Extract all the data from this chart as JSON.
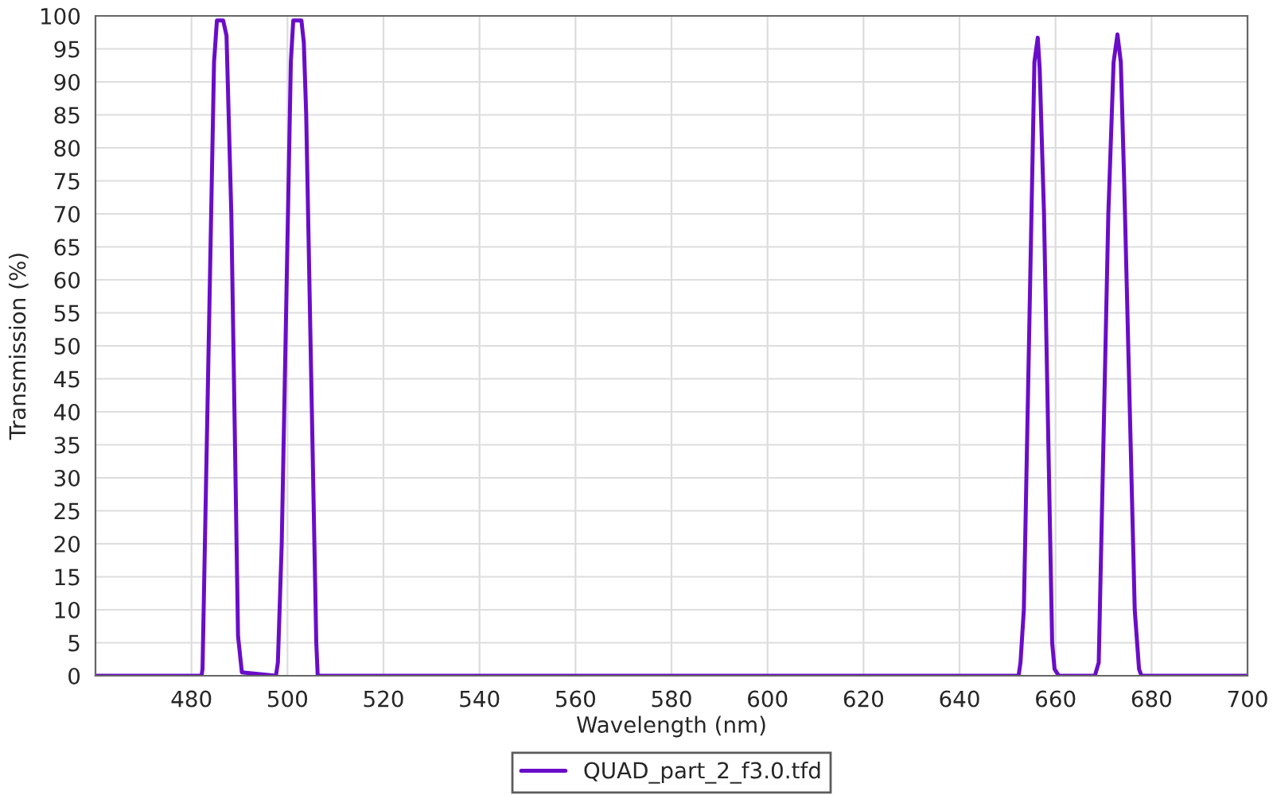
{
  "chart_data": {
    "type": "line",
    "xlabel": "Wavelength (nm)",
    "ylabel": "Transmission (%)",
    "xlim": [
      460,
      700
    ],
    "xticks": [
      480,
      500,
      520,
      540,
      560,
      580,
      600,
      620,
      640,
      660,
      680,
      700
    ],
    "ylim": [
      0,
      100
    ],
    "yticks": [
      0,
      5,
      10,
      15,
      20,
      25,
      30,
      35,
      40,
      45,
      50,
      55,
      60,
      65,
      70,
      75,
      80,
      85,
      90,
      95,
      100
    ],
    "grid": true,
    "legend": "bottom",
    "marker": "none",
    "line_style": "solid",
    "series": [
      {
        "name": "QUAD_part_2_f3.0.tfd",
        "color": "#6a0dc8",
        "x": [
          460,
          482.1,
          482.3,
          484.7,
          485.3,
          486.6,
          487.3,
          488.3,
          489.7,
          490.5,
          497.6,
          498.0,
          498.8,
          500.7,
          501.2,
          502.9,
          503.4,
          503.9,
          506.0,
          506.3,
          652.3,
          652.7,
          653.4,
          655.6,
          656.3,
          656.7,
          657.6,
          659.3,
          659.8,
          660.7,
          668.2,
          669.0,
          671.0,
          672.1,
          672.9,
          673.6,
          674.3,
          676.5,
          677.4,
          677.9,
          700
        ],
        "values": [
          0,
          0,
          1,
          93,
          99.3,
          99.3,
          97,
          70,
          6,
          0.5,
          0,
          2,
          20,
          93,
          99.3,
          99.3,
          96,
          85,
          5,
          0,
          0,
          2,
          10,
          93,
          96.7,
          92,
          70,
          5,
          1,
          0,
          0,
          2,
          70,
          93,
          97.2,
          93,
          75,
          10,
          1,
          0,
          0
        ]
      }
    ]
  }
}
